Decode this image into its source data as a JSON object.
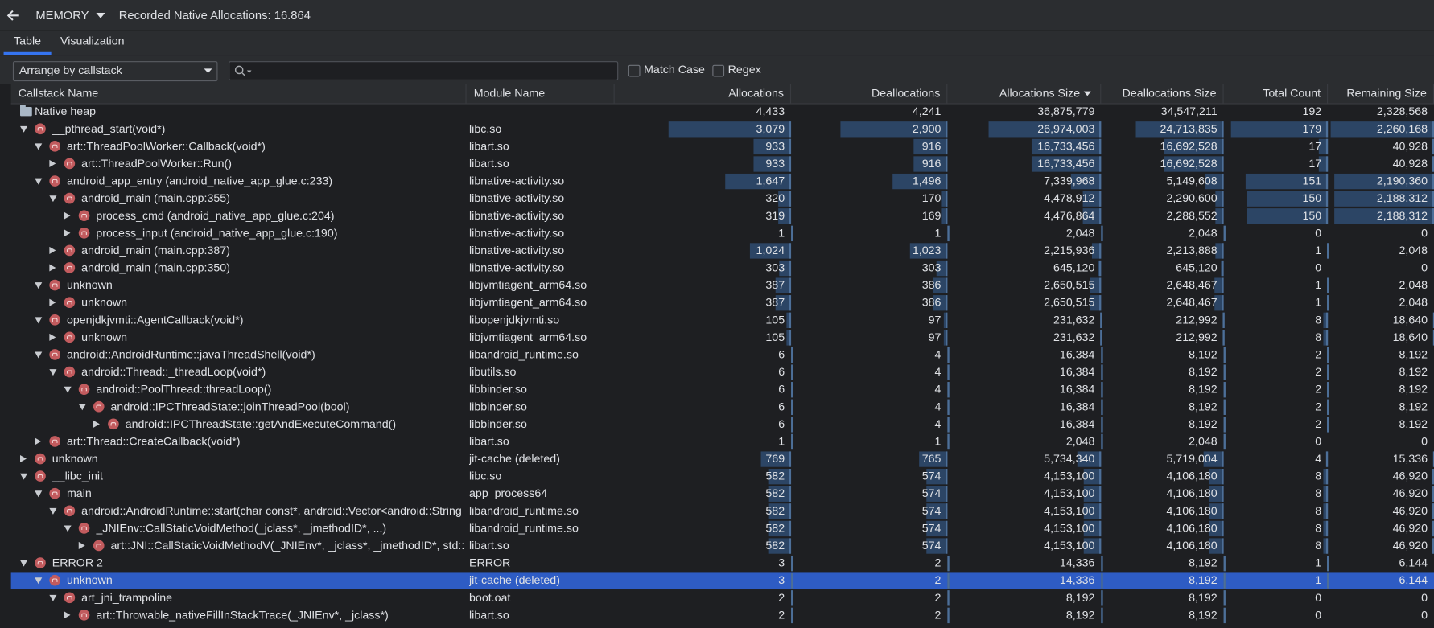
{
  "header": {
    "menu": "MEMORY",
    "title": "Recorded Native Allocations: 16.864"
  },
  "tabs": [
    {
      "label": "Table",
      "active": true
    },
    {
      "label": "Visualization",
      "active": false
    }
  ],
  "toolbar": {
    "arrange": "Arrange by callstack",
    "options": [
      "Match Case",
      "Regex"
    ]
  },
  "table": {
    "columns": [
      "Callstack Name",
      "Module Name",
      "Allocations",
      "Deallocations",
      "Allocations Size",
      "Deallocations Size",
      "Total Count",
      "Remaining Size"
    ],
    "sorted_column": 4,
    "root": {
      "name": "Native heap",
      "module": "",
      "values": [
        "4,433",
        "4,241",
        "36,875,779",
        "34,547,211",
        "192",
        "2,328,568"
      ],
      "expanded": true,
      "children": [
        {
          "name": "__pthread_start(void*)",
          "module": "libc.so",
          "values": [
            "3,079",
            "2,900",
            "26,974,003",
            "24,713,835",
            "179",
            "2,260,168"
          ],
          "expanded": true,
          "children": [
            {
              "name": "art::ThreadPoolWorker::Callback(void*)",
              "module": "libart.so",
              "values": [
                "933",
                "916",
                "16,733,456",
                "16,692,528",
                "17",
                "40,928"
              ],
              "expanded": true,
              "children": [
                {
                  "name": "art::ThreadPoolWorker::Run()",
                  "module": "libart.so",
                  "values": [
                    "933",
                    "916",
                    "16,733,456",
                    "16,692,528",
                    "17",
                    "40,928"
                  ],
                  "expanded": false
                }
              ]
            },
            {
              "name": "android_app_entry (android_native_app_glue.c:233)",
              "module": "libnative-activity.so",
              "values": [
                "1,647",
                "1,496",
                "7,339,968",
                "5,149,608",
                "151",
                "2,190,360"
              ],
              "expanded": true,
              "children": [
                {
                  "name": "android_main (main.cpp:355)",
                  "module": "libnative-activity.so",
                  "values": [
                    "320",
                    "170",
                    "4,478,912",
                    "2,290,600",
                    "150",
                    "2,188,312"
                  ],
                  "expanded": true,
                  "children": [
                    {
                      "name": "process_cmd (android_native_app_glue.c:204)",
                      "module": "libnative-activity.so",
                      "values": [
                        "319",
                        "169",
                        "4,476,864",
                        "2,288,552",
                        "150",
                        "2,188,312"
                      ],
                      "expanded": false
                    },
                    {
                      "name": "process_input (android_native_app_glue.c:190)",
                      "module": "libnative-activity.so",
                      "values": [
                        "1",
                        "1",
                        "2,048",
                        "2,048",
                        "0",
                        "0"
                      ],
                      "expanded": false
                    }
                  ]
                },
                {
                  "name": "android_main (main.cpp:387)",
                  "module": "libnative-activity.so",
                  "values": [
                    "1,024",
                    "1,023",
                    "2,215,936",
                    "2,213,888",
                    "1",
                    "2,048"
                  ],
                  "expanded": false
                },
                {
                  "name": "android_main (main.cpp:350)",
                  "module": "libnative-activity.so",
                  "values": [
                    "303",
                    "303",
                    "645,120",
                    "645,120",
                    "0",
                    "0"
                  ],
                  "expanded": false
                }
              ]
            },
            {
              "name": "unknown",
              "module": "libjvmtiagent_arm64.so",
              "values": [
                "387",
                "386",
                "2,650,515",
                "2,648,467",
                "1",
                "2,048"
              ],
              "expanded": true,
              "children": [
                {
                  "name": "unknown",
                  "module": "libjvmtiagent_arm64.so",
                  "values": [
                    "387",
                    "386",
                    "2,650,515",
                    "2,648,467",
                    "1",
                    "2,048"
                  ],
                  "expanded": false
                }
              ]
            },
            {
              "name": "openjdkjvmti::AgentCallback(void*)",
              "module": "libopenjdkjvmti.so",
              "values": [
                "105",
                "97",
                "231,632",
                "212,992",
                "8",
                "18,640"
              ],
              "expanded": true,
              "children": [
                {
                  "name": "unknown",
                  "module": "libjvmtiagent_arm64.so",
                  "values": [
                    "105",
                    "97",
                    "231,632",
                    "212,992",
                    "8",
                    "18,640"
                  ],
                  "expanded": false
                }
              ]
            },
            {
              "name": "android::AndroidRuntime::javaThreadShell(void*)",
              "module": "libandroid_runtime.so",
              "values": [
                "6",
                "4",
                "16,384",
                "8,192",
                "2",
                "8,192"
              ],
              "expanded": true,
              "children": [
                {
                  "name": "android::Thread::_threadLoop(void*)",
                  "module": "libutils.so",
                  "values": [
                    "6",
                    "4",
                    "16,384",
                    "8,192",
                    "2",
                    "8,192"
                  ],
                  "expanded": true,
                  "children": [
                    {
                      "name": "android::PoolThread::threadLoop()",
                      "module": "libbinder.so",
                      "values": [
                        "6",
                        "4",
                        "16,384",
                        "8,192",
                        "2",
                        "8,192"
                      ],
                      "expanded": true,
                      "children": [
                        {
                          "name": "android::IPCThreadState::joinThreadPool(bool)",
                          "module": "libbinder.so",
                          "values": [
                            "6",
                            "4",
                            "16,384",
                            "8,192",
                            "2",
                            "8,192"
                          ],
                          "expanded": true,
                          "children": [
                            {
                              "name": "android::IPCThreadState::getAndExecuteCommand()",
                              "module": "libbinder.so",
                              "values": [
                                "6",
                                "4",
                                "16,384",
                                "8,192",
                                "2",
                                "8,192"
                              ],
                              "expanded": false
                            }
                          ]
                        }
                      ]
                    }
                  ]
                }
              ]
            },
            {
              "name": "art::Thread::CreateCallback(void*)",
              "module": "libart.so",
              "values": [
                "1",
                "1",
                "2,048",
                "2,048",
                "0",
                "0"
              ],
              "expanded": false
            }
          ]
        },
        {
          "name": "unknown",
          "module": "jit-cache (deleted)",
          "values": [
            "769",
            "765",
            "5,734,340",
            "5,719,004",
            "4",
            "15,336"
          ],
          "expanded": false
        },
        {
          "name": "__libc_init",
          "module": "libc.so",
          "values": [
            "582",
            "574",
            "4,153,100",
            "4,106,180",
            "8",
            "46,920"
          ],
          "expanded": true,
          "children": [
            {
              "name": "main",
              "module": "app_process64",
              "values": [
                "582",
                "574",
                "4,153,100",
                "4,106,180",
                "8",
                "46,920"
              ],
              "expanded": true,
              "children": [
                {
                  "name": "android::AndroidRuntime::start(char const*, android::Vector<android::String",
                  "module": "libandroid_runtime.so",
                  "values": [
                    "582",
                    "574",
                    "4,153,100",
                    "4,106,180",
                    "8",
                    "46,920"
                  ],
                  "expanded": true,
                  "children": [
                    {
                      "name": "_JNIEnv::CallStaticVoidMethod(_jclass*, _jmethodID*, ...)",
                      "module": "libandroid_runtime.so",
                      "values": [
                        "582",
                        "574",
                        "4,153,100",
                        "4,106,180",
                        "8",
                        "46,920"
                      ],
                      "expanded": true,
                      "children": [
                        {
                          "name": "art::JNI::CallStaticVoidMethodV(_JNIEnv*, _jclass*, _jmethodID*, std::",
                          "module": "libart.so",
                          "values": [
                            "582",
                            "574",
                            "4,153,100",
                            "4,106,180",
                            "8",
                            "46,920"
                          ],
                          "expanded": false
                        }
                      ]
                    }
                  ]
                }
              ]
            }
          ]
        },
        {
          "name": "ERROR 2",
          "module": "ERROR",
          "values": [
            "3",
            "2",
            "14,336",
            "8,192",
            "1",
            "6,144"
          ],
          "expanded": true,
          "children": [
            {
              "name": "unknown",
              "module": "jit-cache (deleted)",
              "values": [
                "3",
                "2",
                "14,336",
                "8,192",
                "1",
                "6,144"
              ],
              "expanded": true,
              "selected": true,
              "children": [
                {
                  "name": "art_jni_trampoline",
                  "module": "boot.oat",
                  "values": [
                    "2",
                    "2",
                    "8,192",
                    "8,192",
                    "0",
                    "0"
                  ],
                  "expanded": true,
                  "children": [
                    {
                      "name": "art::Throwable_nativeFillInStackTrace(_JNIEnv*, _jclass*)",
                      "module": "libart.so",
                      "values": [
                        "2",
                        "2",
                        "8,192",
                        "8,192",
                        "0",
                        "0"
                      ],
                      "expanded": false
                    }
                  ]
                }
              ]
            }
          ]
        }
      ]
    }
  }
}
